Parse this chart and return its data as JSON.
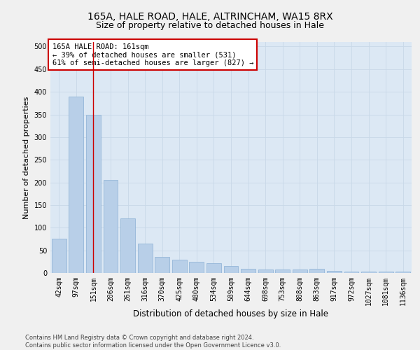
{
  "title1": "165A, HALE ROAD, HALE, ALTRINCHAM, WA15 8RX",
  "title2": "Size of property relative to detached houses in Hale",
  "xlabel": "Distribution of detached houses by size in Hale",
  "ylabel": "Number of detached properties",
  "categories": [
    "42sqm",
    "97sqm",
    "151sqm",
    "206sqm",
    "261sqm",
    "316sqm",
    "370sqm",
    "425sqm",
    "480sqm",
    "534sqm",
    "589sqm",
    "644sqm",
    "698sqm",
    "753sqm",
    "808sqm",
    "863sqm",
    "917sqm",
    "972sqm",
    "1027sqm",
    "1081sqm",
    "1136sqm"
  ],
  "values": [
    75,
    390,
    350,
    205,
    120,
    65,
    35,
    30,
    25,
    22,
    15,
    10,
    8,
    8,
    8,
    10,
    5,
    3,
    3,
    3,
    3
  ],
  "bar_color": "#b8cfe8",
  "bar_edge_color": "#8aafd4",
  "vline_x_index": 2,
  "vline_color": "#cc0000",
  "annotation_text": "165A HALE ROAD: 161sqm\n← 39% of detached houses are smaller (531)\n61% of semi-detached houses are larger (827) →",
  "annotation_box_color": "#ffffff",
  "annotation_box_edge": "#cc0000",
  "ylim": [
    0,
    510
  ],
  "yticks": [
    0,
    50,
    100,
    150,
    200,
    250,
    300,
    350,
    400,
    450,
    500
  ],
  "grid_color": "#c8d8e8",
  "bg_color": "#dce8f4",
  "fig_bg_color": "#f0f0f0",
  "footer_text": "Contains HM Land Registry data © Crown copyright and database right 2024.\nContains public sector information licensed under the Open Government Licence v3.0.",
  "title1_fontsize": 10,
  "title2_fontsize": 9,
  "tick_fontsize": 7,
  "xlabel_fontsize": 8.5,
  "ylabel_fontsize": 8,
  "annotation_fontsize": 7.5,
  "footer_fontsize": 6
}
